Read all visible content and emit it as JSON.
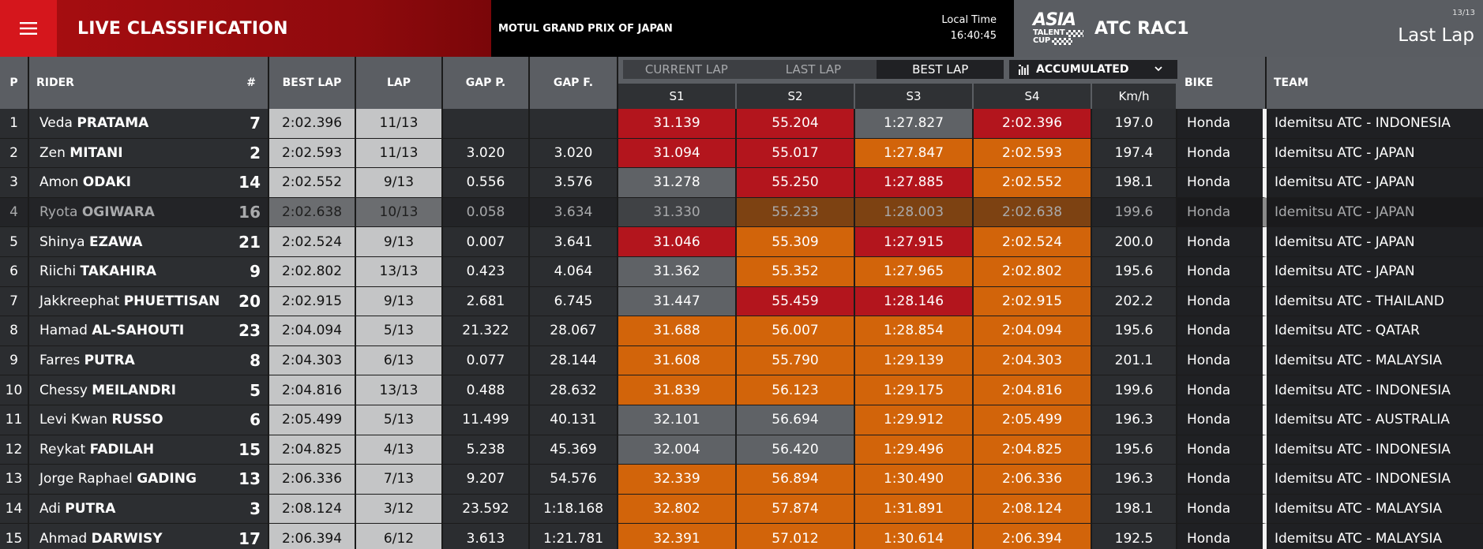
{
  "header": {
    "title": "LIVE CLASSIFICATION",
    "event": "MOTUL GRAND PRIX OF JAPAN",
    "local_time_label": "Local Time",
    "local_time_value": "16:40:45",
    "brand_line1": "ASIA",
    "brand_line2": "TALENT",
    "brand_line3": "CUP",
    "session": "ATC RAC1",
    "page_count": "13/13",
    "lap_mode": "Last Lap",
    "menu_icon": "hamburger-menu-icon"
  },
  "columns": {
    "pos": "P",
    "rider": "RIDER",
    "number": "#",
    "best_lap": "BEST LAP",
    "lap": "LAP",
    "gap_p": "GAP P.",
    "gap_f": "GAP F.",
    "bike": "BIKE",
    "team": "TEAM",
    "sectors": [
      "S1",
      "S2",
      "S3",
      "S4"
    ],
    "kmh": "Km/h"
  },
  "tabs": [
    {
      "label": "CURRENT LAP",
      "active": false
    },
    {
      "label": "LAST LAP",
      "active": false
    },
    {
      "label": "BEST LAP",
      "active": true
    }
  ],
  "dropdown": {
    "label": "ACCUMULATED",
    "icon": "bar-chart-icon"
  },
  "colors": {
    "red_sector": "#b3151d",
    "orange_sector": "#d2640a",
    "grey_sector": "#5f6266",
    "brand_red": "#d5161c"
  },
  "rows": [
    {
      "p": "1",
      "first": "Veda",
      "last": "PRATAMA",
      "num": "7",
      "best": "2:02.396",
      "lap": "11/13",
      "gapp": "",
      "gapf": "",
      "s": [
        "31.139",
        "55.204",
        "1:27.827",
        "2:02.396"
      ],
      "sc": [
        "red",
        "red",
        "grey",
        "red"
      ],
      "kmh": "197.0",
      "bike": "Honda",
      "team": "Idemitsu ATC - INDONESIA",
      "dim": false
    },
    {
      "p": "2",
      "first": "Zen",
      "last": "MITANI",
      "num": "2",
      "best": "2:02.593",
      "lap": "11/13",
      "gapp": "3.020",
      "gapf": "3.020",
      "s": [
        "31.094",
        "55.017",
        "1:27.847",
        "2:02.593"
      ],
      "sc": [
        "red",
        "red",
        "orange",
        "orange"
      ],
      "kmh": "197.4",
      "bike": "Honda",
      "team": "Idemitsu ATC - JAPAN",
      "dim": false
    },
    {
      "p": "3",
      "first": "Amon",
      "last": "ODAKI",
      "num": "14",
      "best": "2:02.552",
      "lap": "9/13",
      "gapp": "0.556",
      "gapf": "3.576",
      "s": [
        "31.278",
        "55.250",
        "1:27.885",
        "2:02.552"
      ],
      "sc": [
        "grey",
        "red",
        "red",
        "orange"
      ],
      "kmh": "198.1",
      "bike": "Honda",
      "team": "Idemitsu ATC - JAPAN",
      "dim": false
    },
    {
      "p": "4",
      "first": "Ryota",
      "last": "OGIWARA",
      "num": "16",
      "best": "2:02.638",
      "lap": "10/13",
      "gapp": "0.058",
      "gapf": "3.634",
      "s": [
        "31.330",
        "55.233",
        "1:28.003",
        "2:02.638"
      ],
      "sc": [
        "grey",
        "orange",
        "orange",
        "orange"
      ],
      "kmh": "199.6",
      "bike": "Honda",
      "team": "Idemitsu ATC - JAPAN",
      "dim": true
    },
    {
      "p": "5",
      "first": "Shinya",
      "last": "EZAWA",
      "num": "21",
      "best": "2:02.524",
      "lap": "9/13",
      "gapp": "0.007",
      "gapf": "3.641",
      "s": [
        "31.046",
        "55.309",
        "1:27.915",
        "2:02.524"
      ],
      "sc": [
        "red",
        "orange",
        "red",
        "orange"
      ],
      "kmh": "200.0",
      "bike": "Honda",
      "team": "Idemitsu ATC - JAPAN",
      "dim": false
    },
    {
      "p": "6",
      "first": "Riichi",
      "last": "TAKAHIRA",
      "num": "9",
      "best": "2:02.802",
      "lap": "13/13",
      "gapp": "0.423",
      "gapf": "4.064",
      "s": [
        "31.362",
        "55.352",
        "1:27.965",
        "2:02.802"
      ],
      "sc": [
        "grey",
        "orange",
        "orange",
        "orange"
      ],
      "kmh": "195.6",
      "bike": "Honda",
      "team": "Idemitsu ATC - JAPAN",
      "dim": false
    },
    {
      "p": "7",
      "first": "Jakkreephat",
      "last": "PHUETTISAN",
      "num": "20",
      "best": "2:02.915",
      "lap": "9/13",
      "gapp": "2.681",
      "gapf": "6.745",
      "s": [
        "31.447",
        "55.459",
        "1:28.146",
        "2:02.915"
      ],
      "sc": [
        "grey",
        "red",
        "red",
        "orange"
      ],
      "kmh": "202.2",
      "bike": "Honda",
      "team": "Idemitsu ATC - THAILAND",
      "dim": false
    },
    {
      "p": "8",
      "first": "Hamad",
      "last": "AL-SAHOUTI",
      "num": "23",
      "best": "2:04.094",
      "lap": "5/13",
      "gapp": "21.322",
      "gapf": "28.067",
      "s": [
        "31.688",
        "56.007",
        "1:28.854",
        "2:04.094"
      ],
      "sc": [
        "orange",
        "orange",
        "orange",
        "orange"
      ],
      "kmh": "195.6",
      "bike": "Honda",
      "team": "Idemitsu ATC - QATAR",
      "dim": false
    },
    {
      "p": "9",
      "first": "Farres",
      "last": "PUTRA",
      "num": "8",
      "best": "2:04.303",
      "lap": "6/13",
      "gapp": "0.077",
      "gapf": "28.144",
      "s": [
        "31.608",
        "55.790",
        "1:29.139",
        "2:04.303"
      ],
      "sc": [
        "orange",
        "orange",
        "orange",
        "orange"
      ],
      "kmh": "201.1",
      "bike": "Honda",
      "team": "Idemitsu ATC - MALAYSIA",
      "dim": false
    },
    {
      "p": "10",
      "first": "Chessy",
      "last": "MEILANDRI",
      "num": "5",
      "best": "2:04.816",
      "lap": "13/13",
      "gapp": "0.488",
      "gapf": "28.632",
      "s": [
        "31.839",
        "56.123",
        "1:29.175",
        "2:04.816"
      ],
      "sc": [
        "orange",
        "orange",
        "orange",
        "orange"
      ],
      "kmh": "199.6",
      "bike": "Honda",
      "team": "Idemitsu ATC - INDONESIA",
      "dim": false
    },
    {
      "p": "11",
      "first": "Levi Kwan",
      "last": "RUSSO",
      "num": "6",
      "best": "2:05.499",
      "lap": "5/13",
      "gapp": "11.499",
      "gapf": "40.131",
      "s": [
        "32.101",
        "56.694",
        "1:29.912",
        "2:05.499"
      ],
      "sc": [
        "grey",
        "grey",
        "orange",
        "orange"
      ],
      "kmh": "196.3",
      "bike": "Honda",
      "team": "Idemitsu ATC - AUSTRALIA",
      "dim": false
    },
    {
      "p": "12",
      "first": "Reykat",
      "last": "FADILAH",
      "num": "15",
      "best": "2:04.825",
      "lap": "4/13",
      "gapp": "5.238",
      "gapf": "45.369",
      "s": [
        "32.004",
        "56.420",
        "1:29.496",
        "2:04.825"
      ],
      "sc": [
        "grey",
        "grey",
        "orange",
        "orange"
      ],
      "kmh": "195.6",
      "bike": "Honda",
      "team": "Idemitsu ATC - INDONESIA",
      "dim": false
    },
    {
      "p": "13",
      "first": "Jorge Raphael",
      "last": "GADING",
      "num": "13",
      "best": "2:06.336",
      "lap": "7/13",
      "gapp": "9.207",
      "gapf": "54.576",
      "s": [
        "32.339",
        "56.894",
        "1:30.490",
        "2:06.336"
      ],
      "sc": [
        "orange",
        "orange",
        "orange",
        "orange"
      ],
      "kmh": "196.3",
      "bike": "Honda",
      "team": "Idemitsu ATC - INDONESIA",
      "dim": false
    },
    {
      "p": "14",
      "first": "Adi",
      "last": "PUTRA",
      "num": "3",
      "best": "2:08.124",
      "lap": "3/12",
      "gapp": "23.592",
      "gapf": "1:18.168",
      "s": [
        "32.802",
        "57.874",
        "1:31.891",
        "2:08.124"
      ],
      "sc": [
        "orange",
        "orange",
        "orange",
        "orange"
      ],
      "kmh": "198.1",
      "bike": "Honda",
      "team": "Idemitsu ATC - MALAYSIA",
      "dim": false
    },
    {
      "p": "15",
      "first": "Ahmad",
      "last": "DARWISY",
      "num": "17",
      "best": "2:06.394",
      "lap": "6/12",
      "gapp": "3.613",
      "gapf": "1:21.781",
      "s": [
        "32.391",
        "57.012",
        "1:30.614",
        "2:06.394"
      ],
      "sc": [
        "orange",
        "orange",
        "orange",
        "orange"
      ],
      "kmh": "192.5",
      "bike": "Honda",
      "team": "Idemitsu ATC - MALAYSIA",
      "dim": false
    }
  ]
}
